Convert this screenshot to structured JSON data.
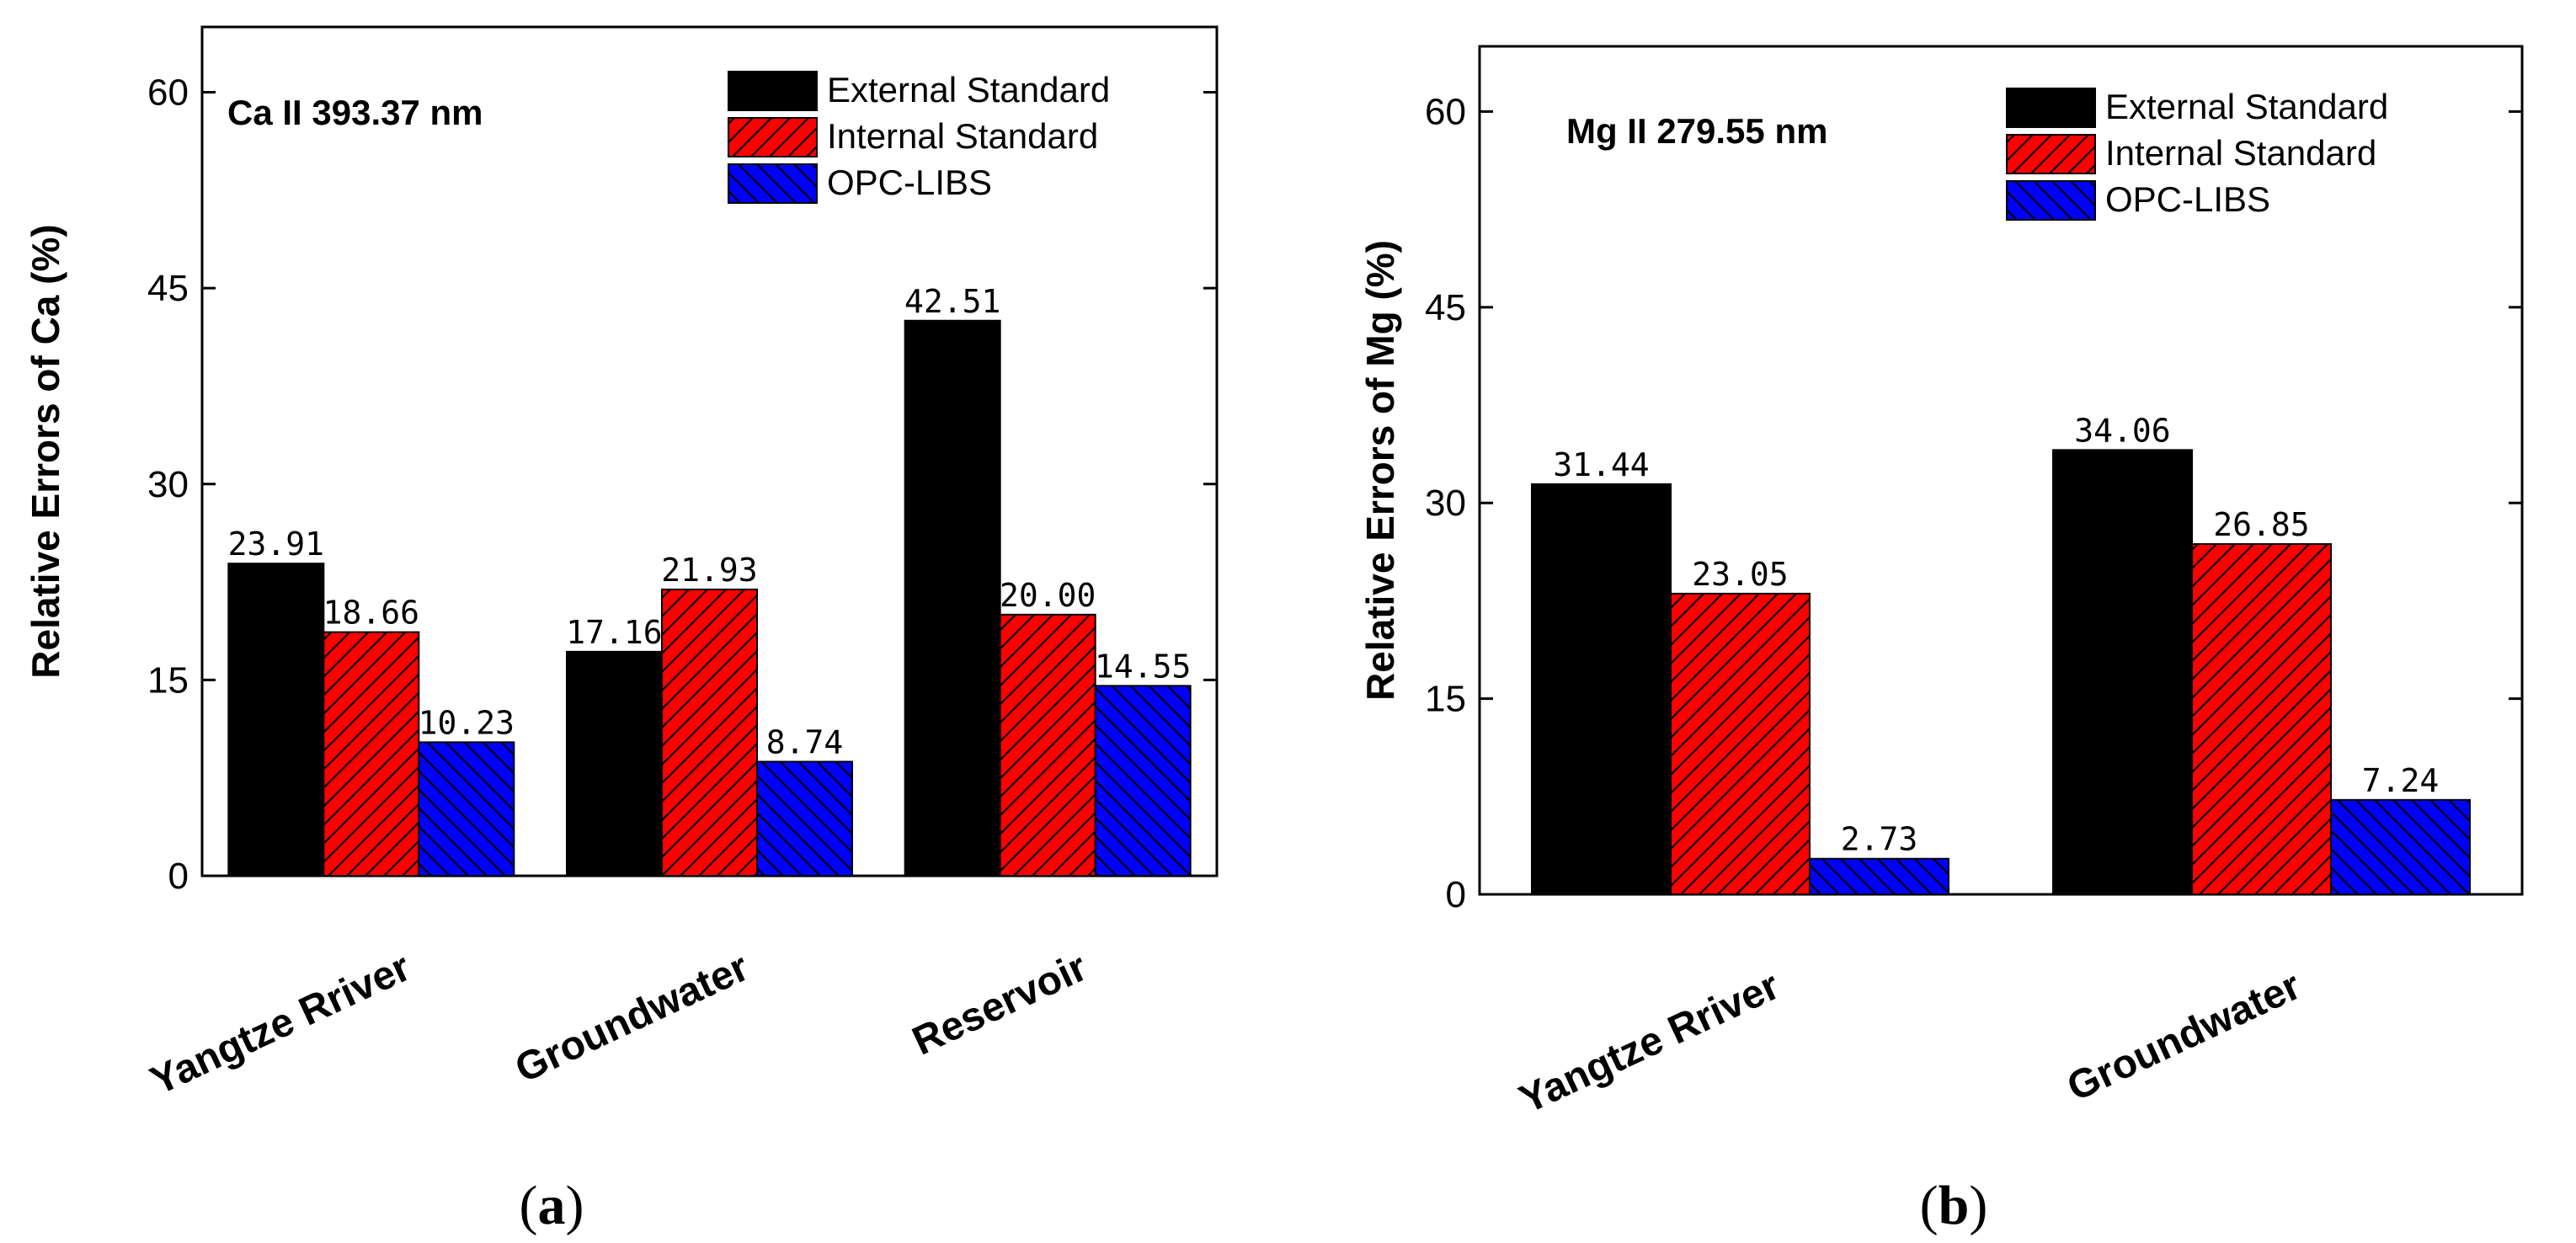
{
  "chart_data": [
    {
      "type": "bar",
      "panel_label": "a",
      "annotation": "Ca II 393.37 nm",
      "xlabel": "",
      "ylabel": "Relative Errors of Ca (%)",
      "ylim": [
        0,
        65
      ],
      "yticks": [
        0,
        15,
        30,
        45,
        60
      ],
      "categories": [
        "Yangtze Rriver",
        "Groundwater",
        "Reservoir"
      ],
      "legend_position": "top-right",
      "series": [
        {
          "name": "External Standard",
          "color": "#000000",
          "pattern": "solid",
          "values": [
            23.91,
            17.16,
            42.51
          ],
          "labels": [
            "23.91",
            "17.16",
            "42.51"
          ]
        },
        {
          "name": "Internal Standard",
          "color": "#ff0000",
          "pattern": "hatch-right",
          "values": [
            18.66,
            21.93,
            20.0
          ],
          "labels": [
            "18.66",
            "21.93",
            "20.00"
          ]
        },
        {
          "name": "OPC-LIBS",
          "color": "#0000ff",
          "pattern": "hatch-left",
          "values": [
            10.23,
            8.74,
            14.55
          ],
          "labels": [
            "10.23",
            "8.74",
            "14.55"
          ]
        }
      ]
    },
    {
      "type": "bar",
      "panel_label": "b",
      "annotation": "Mg II 279.55 nm",
      "xlabel": "",
      "ylabel": "Relative Errors of Mg (%)",
      "ylim": [
        0,
        65
      ],
      "yticks": [
        0,
        15,
        30,
        45,
        60
      ],
      "categories": [
        "Yangtze Rriver",
        "Groundwater"
      ],
      "legend_position": "top-right",
      "series": [
        {
          "name": "External Standard",
          "color": "#000000",
          "pattern": "solid",
          "values": [
            31.44,
            34.06
          ],
          "labels": [
            "31.44",
            "34.06"
          ]
        },
        {
          "name": "Internal Standard",
          "color": "#ff0000",
          "pattern": "hatch-right",
          "values": [
            23.05,
            26.85
          ],
          "labels": [
            "23.05",
            "26.85"
          ]
        },
        {
          "name": "OPC-LIBS",
          "color": "#0000ff",
          "pattern": "hatch-left",
          "values": [
            2.73,
            7.24
          ],
          "labels": [
            "2.73",
            "7.24"
          ]
        }
      ]
    }
  ]
}
